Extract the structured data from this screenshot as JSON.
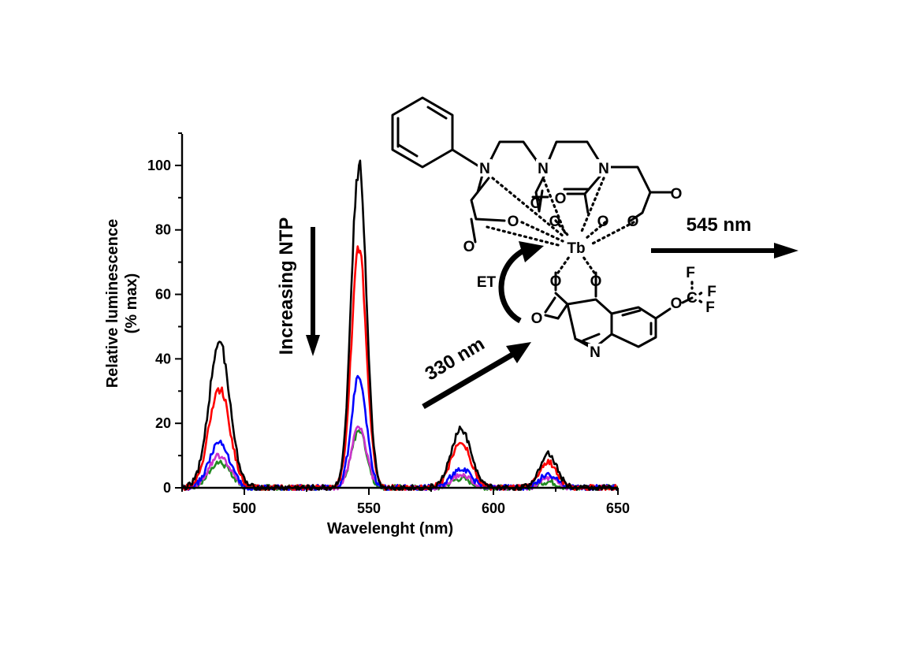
{
  "chart_data": {
    "type": "line",
    "xlabel": "Wavelenght (nm)",
    "ylabel": [
      "Relative luminescence",
      "(% max)"
    ],
    "xlim": [
      475,
      650
    ],
    "ylim": [
      0,
      110
    ],
    "x_ticks": [
      500,
      550,
      600,
      650
    ],
    "y_ticks": [
      0,
      20,
      40,
      60,
      80,
      100
    ],
    "grid": false,
    "legend": "none",
    "peaks_nm": [
      490,
      546,
      587,
      622
    ],
    "series": [
      {
        "color": "#000000",
        "peak_heights": [
          45,
          100,
          18,
          11
        ]
      },
      {
        "color": "#ff0000",
        "peak_heights": [
          31,
          74,
          14,
          8
        ]
      },
      {
        "color": "#0000ff",
        "peak_heights": [
          14,
          34,
          6,
          4
        ]
      },
      {
        "color": "#cc33cc",
        "peak_heights": [
          10,
          19,
          4,
          3
        ]
      },
      {
        "color": "#228b22",
        "peak_heights": [
          8,
          18,
          3,
          2
        ]
      }
    ],
    "annotations": {
      "increasing": "Increasing NTP",
      "excitation": "330 nm",
      "emission": "545 nm",
      "energy_transfer": "ET"
    }
  },
  "molecule": {
    "atoms": {
      "N": "N",
      "O": "O",
      "Tb": "Tb",
      "F": "F",
      "C": "C"
    }
  }
}
